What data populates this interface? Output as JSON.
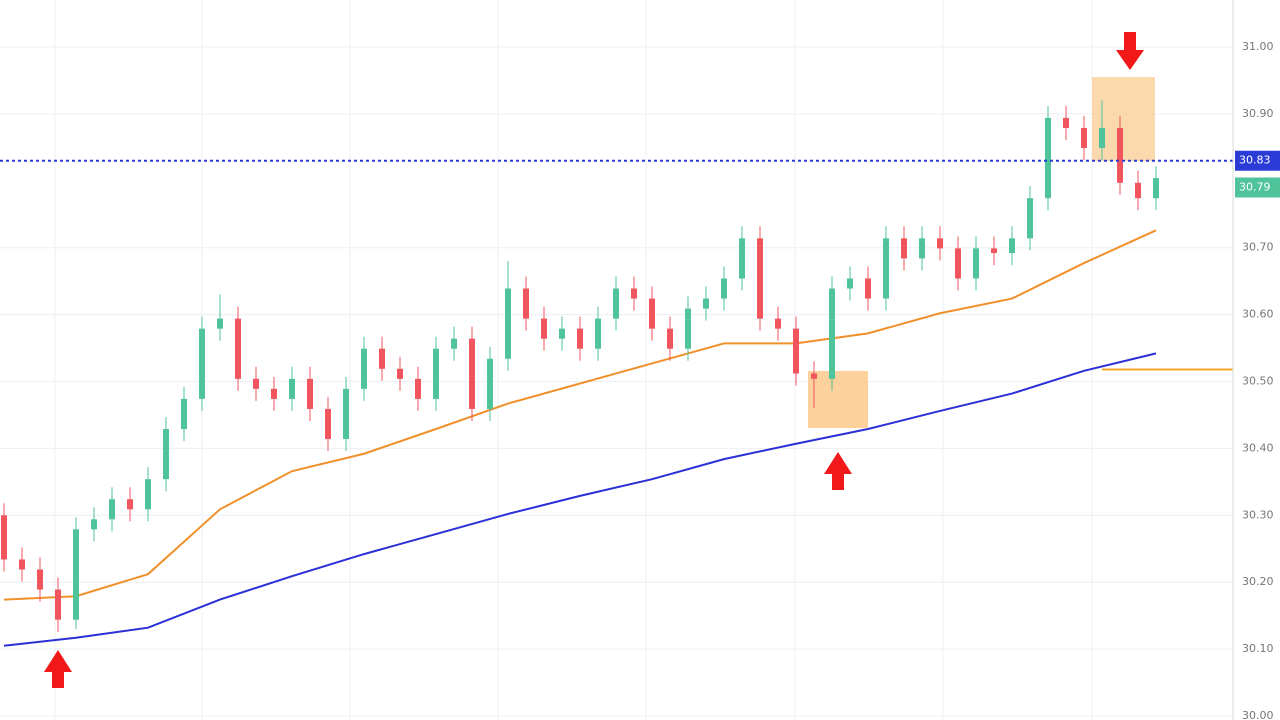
{
  "chart_data": {
    "type": "candlestick",
    "ylim": [
      30.0,
      31.0
    ],
    "yticks": [
      {
        "value": 31.0,
        "label": "31.00"
      },
      {
        "value": 30.9,
        "label": "30.90"
      },
      {
        "value": 30.7,
        "label": "30.70"
      },
      {
        "value": 30.6,
        "label": "30.60"
      },
      {
        "value": 30.5,
        "label": "30.50"
      },
      {
        "value": 30.4,
        "label": "30.40"
      },
      {
        "value": 30.3,
        "label": "30.30"
      },
      {
        "value": 30.2,
        "label": "30.20"
      },
      {
        "value": 30.1,
        "label": "30.10"
      },
      {
        "value": 30.0,
        "label": "30.00"
      }
    ],
    "grid": true,
    "up_color": "#4fc39a",
    "down_color": "#f0545c",
    "open": [
      30.3,
      30.234,
      30.219,
      30.189,
      30.144,
      30.279,
      30.294,
      30.324,
      30.309,
      30.354,
      30.429,
      30.474,
      30.579,
      30.594,
      30.504,
      30.489,
      30.474,
      30.504,
      30.459,
      30.414,
      30.489,
      30.549,
      30.519,
      30.504,
      30.474,
      30.549,
      30.564,
      30.459,
      30.534,
      30.639,
      30.594,
      30.564,
      30.579,
      30.549,
      30.594,
      30.639,
      30.624,
      30.579,
      30.549,
      30.609,
      30.624,
      30.654,
      30.714,
      30.594,
      30.579,
      30.512,
      30.504,
      30.639,
      30.654,
      30.624,
      30.714,
      30.684,
      30.714,
      30.699,
      30.654,
      30.699,
      30.692,
      30.714,
      30.774,
      30.894,
      30.879,
      30.849,
      30.879,
      30.797,
      30.774
    ],
    "high": [
      30.318,
      30.252,
      30.237,
      30.207,
      30.297,
      30.312,
      30.342,
      30.342,
      30.372,
      30.447,
      30.492,
      30.597,
      30.63,
      30.612,
      30.522,
      30.507,
      30.522,
      30.522,
      30.477,
      30.507,
      30.567,
      30.567,
      30.537,
      30.522,
      30.567,
      30.582,
      30.582,
      30.552,
      30.68,
      30.657,
      30.612,
      30.597,
      30.597,
      30.612,
      30.657,
      30.657,
      30.642,
      30.597,
      30.627,
      30.642,
      30.672,
      30.732,
      30.732,
      30.612,
      30.597,
      30.53,
      30.657,
      30.672,
      30.672,
      30.732,
      30.732,
      30.732,
      30.732,
      30.717,
      30.717,
      30.717,
      30.732,
      30.792,
      30.912,
      30.912,
      30.897,
      30.92,
      30.897,
      30.815,
      30.822
    ],
    "low": [
      30.216,
      30.201,
      30.171,
      30.126,
      30.13,
      30.261,
      30.276,
      30.291,
      30.291,
      30.336,
      30.411,
      30.456,
      30.561,
      30.486,
      30.471,
      30.456,
      30.456,
      30.441,
      30.396,
      30.396,
      30.471,
      30.501,
      30.486,
      30.456,
      30.456,
      30.531,
      30.441,
      30.441,
      30.516,
      30.576,
      30.546,
      30.546,
      30.531,
      30.531,
      30.576,
      30.606,
      30.561,
      30.531,
      30.531,
      30.591,
      30.606,
      30.636,
      30.576,
      30.561,
      30.494,
      30.46,
      30.486,
      30.621,
      30.606,
      30.606,
      30.666,
      30.666,
      30.681,
      30.636,
      30.636,
      30.674,
      30.674,
      30.696,
      30.756,
      30.861,
      30.831,
      30.831,
      30.779,
      30.756,
      30.756
    ],
    "close": [
      30.234,
      30.219,
      30.189,
      30.144,
      30.279,
      30.294,
      30.324,
      30.309,
      30.354,
      30.429,
      30.474,
      30.579,
      30.594,
      30.504,
      30.489,
      30.474,
      30.504,
      30.459,
      30.414,
      30.489,
      30.549,
      30.519,
      30.504,
      30.474,
      30.549,
      30.564,
      30.459,
      30.534,
      30.639,
      30.594,
      30.564,
      30.579,
      30.549,
      30.594,
      30.639,
      30.624,
      30.579,
      30.549,
      30.609,
      30.624,
      30.654,
      30.714,
      30.594,
      30.579,
      30.512,
      30.504,
      30.639,
      30.654,
      30.624,
      30.714,
      30.684,
      30.714,
      30.699,
      30.654,
      30.699,
      30.692,
      30.714,
      30.774,
      30.894,
      30.879,
      30.849,
      30.879,
      30.797,
      30.774,
      30.804
    ],
    "lines": [
      {
        "color": "#f0902a",
        "x": [
          0,
          4,
          8,
          12,
          16,
          20,
          24,
          28,
          32,
          36,
          40,
          44,
          48,
          52,
          56,
          60,
          64
        ],
        "values": [
          30.174,
          30.179,
          30.212,
          30.309,
          30.366,
          30.392,
          30.429,
          30.467,
          30.497,
          30.527,
          30.557,
          30.557,
          30.572,
          30.602,
          30.624,
          30.677,
          30.726
        ]
      },
      {
        "color": "#2b2fd6",
        "x": [
          0,
          4,
          8,
          12,
          16,
          20,
          24,
          28,
          32,
          36,
          40,
          44,
          48,
          52,
          56,
          60,
          64
        ],
        "values": [
          30.105,
          30.117,
          30.132,
          30.174,
          30.209,
          30.242,
          30.272,
          30.302,
          30.329,
          30.354,
          30.384,
          30.407,
          30.429,
          30.456,
          30.482,
          30.516,
          30.542
        ]
      }
    ],
    "price_lines": [
      {
        "value": 30.83,
        "label": "30.83",
        "color": "#2b3bd6",
        "line": "dashed"
      },
      {
        "value": 30.79,
        "label": "30.79",
        "color": "#4fc39a"
      },
      {
        "value": 30.518,
        "color": "#f5a623",
        "line": "solid",
        "start": 61
      }
    ]
  }
}
